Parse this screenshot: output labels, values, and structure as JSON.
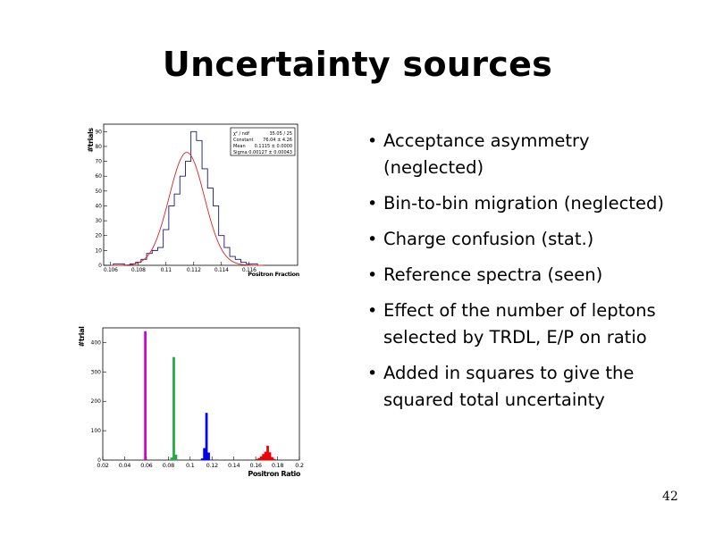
{
  "slide": {
    "title": "Uncertainty sources",
    "page_number": "42",
    "bullets": [
      "Acceptance asymmetry (neglected)",
      "Bin-to-bin migration (neglected)",
      "Charge confusion (stat.)",
      "Reference spectra (seen)",
      "Effect of the number of leptons selected by TRDL, E/P on ratio",
      "Added in squares to give the squared total uncertainty"
    ]
  },
  "colors": {
    "histogram": "#1a1a6e",
    "fit": "#e02020",
    "magenta": "#cc00cc",
    "green": "#22aa44",
    "blue": "#0000ee",
    "red": "#ee0000"
  },
  "chart_data": [
    {
      "type": "histogram",
      "xlabel": "Positron Fraction",
      "ylabel": "#trials",
      "xlim": [
        0.1055,
        0.1195
      ],
      "ylim": [
        0,
        95
      ],
      "x_ticks": [
        0.106,
        0.108,
        0.11,
        0.112,
        0.114,
        0.116
      ],
      "x_tick_labels": [
        "0.106",
        "0.108",
        "0.11",
        "0.112",
        "0.114",
        "0.116"
      ],
      "y_ticks": [
        0,
        10,
        20,
        30,
        40,
        50,
        60,
        70,
        80,
        90
      ],
      "bin_width": 0.0004,
      "bin_edges_start": 0.1058,
      "counts": [
        0,
        1,
        1,
        0,
        1,
        2,
        4,
        8,
        10,
        12,
        24,
        40,
        48,
        60,
        70,
        90,
        84,
        65,
        52,
        40,
        20,
        12,
        6,
        4,
        2,
        1,
        1,
        0
      ],
      "fit": {
        "function": "gaus",
        "constant": 76.04,
        "mean": 0.1115,
        "sigma": 0.00127
      },
      "stats_box": {
        "rows": [
          [
            "χ² / ndf",
            "35.05 / 25"
          ],
          [
            "Constant",
            "76.04 ± 4.26"
          ],
          [
            "Mean",
            "0.1115 ± 0.0000"
          ],
          [
            "Sigma",
            "0.00127 ± 0.00043"
          ]
        ]
      }
    },
    {
      "type": "bar",
      "xlabel": "Positron Ratio",
      "ylabel": "#trial",
      "xlim": [
        0.02,
        0.2
      ],
      "ylim": [
        0,
        450
      ],
      "x_ticks": [
        0.02,
        0.04,
        0.06,
        0.08,
        0.1,
        0.12,
        0.14,
        0.16,
        0.18,
        0.2
      ],
      "x_tick_labels": [
        "0.02",
        "0.04",
        "0.06",
        "0.08",
        "0.1",
        "0.12",
        "0.14",
        "0.16",
        "0.18",
        "0.2"
      ],
      "y_ticks": [
        0,
        100,
        200,
        300,
        400
      ],
      "bin_width": 0.002,
      "series": [
        {
          "color": "magenta",
          "x": [
            0.059
          ],
          "values": [
            438
          ]
        },
        {
          "color": "green",
          "x": [
            0.083,
            0.085,
            0.087
          ],
          "values": [
            8,
            350,
            18
          ]
        },
        {
          "color": "blue",
          "x": [
            0.111,
            0.113,
            0.115,
            0.117
          ],
          "values": [
            5,
            40,
            160,
            25
          ]
        },
        {
          "color": "red",
          "x": [
            0.161,
            0.163,
            0.165,
            0.167,
            0.169,
            0.171,
            0.173,
            0.175,
            0.177
          ],
          "values": [
            3,
            6,
            12,
            20,
            28,
            48,
            26,
            10,
            4
          ]
        }
      ]
    }
  ]
}
